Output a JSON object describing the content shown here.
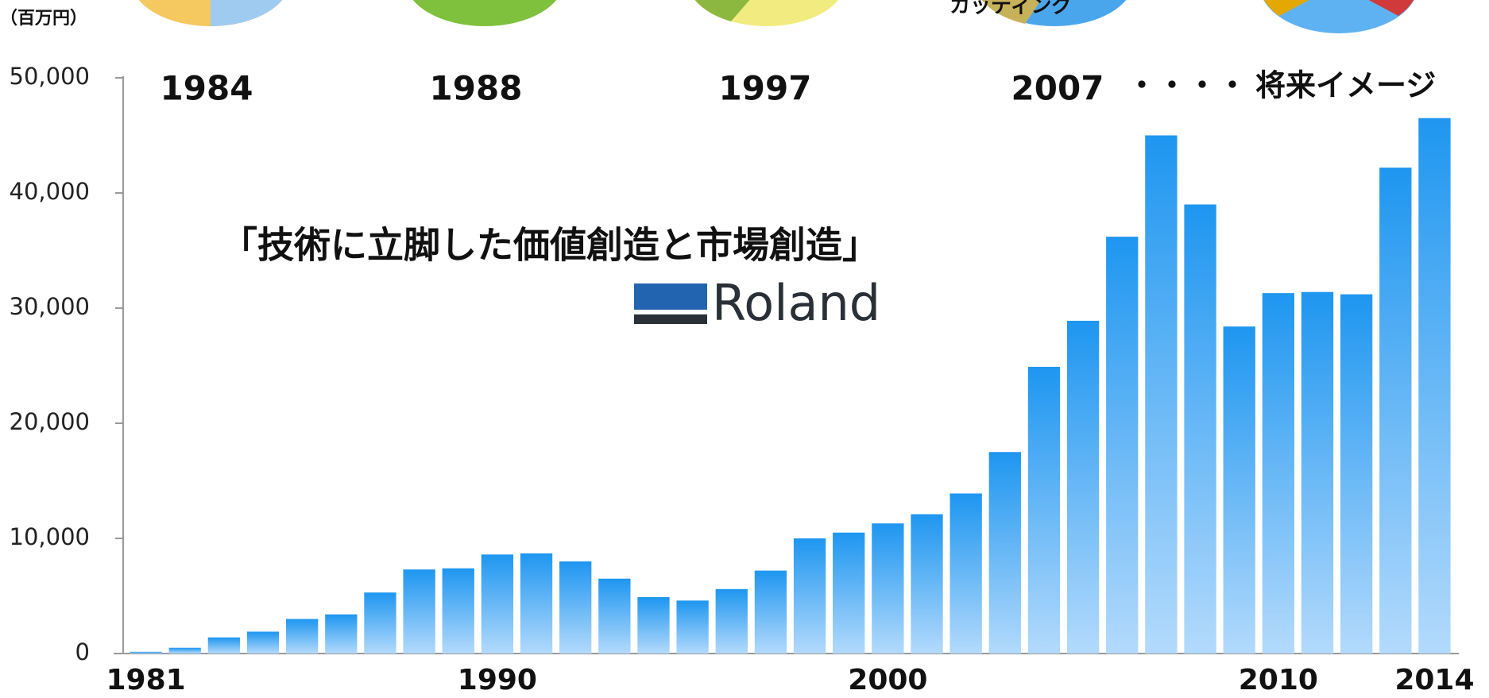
{
  "chart_data": {
    "type": "bar",
    "unit_label": "（百万円）",
    "annotations": [
      "1984",
      "1988",
      "1997",
      "2007",
      "・・・・",
      "将来イメージ",
      "「技術に立脚した価値創造と市場創造」",
      "Roland",
      "カッティング"
    ],
    "categories": [
      "1981",
      null,
      null,
      null,
      null,
      null,
      null,
      null,
      null,
      "1990",
      null,
      null,
      null,
      null,
      null,
      null,
      null,
      null,
      null,
      "2000",
      null,
      null,
      null,
      null,
      null,
      null,
      null,
      null,
      null,
      "2010",
      null,
      null,
      null,
      "2014"
    ],
    "values": [
      150,
      500,
      1400,
      1900,
      3000,
      3400,
      5300,
      7300,
      7400,
      8600,
      8700,
      8000,
      6500,
      4900,
      4600,
      5600,
      7200,
      10000,
      10500,
      11300,
      12100,
      13900,
      17500,
      24900,
      28900,
      36200,
      45000,
      39000,
      28400,
      31300,
      31400,
      31200,
      42200,
      46500
    ],
    "color": "#1e96f0",
    "ylim": [
      0,
      50000
    ],
    "yticks": [
      0,
      {
        "value": 10000,
        "label": "10,000"
      },
      {
        "value": 20000,
        "label": "20,000"
      },
      {
        "value": 30000,
        "label": "30,000"
      },
      {
        "value": 40000,
        "label": "40,000"
      },
      {
        "value": 50000,
        "label": "50,000"
      }
    ]
  }
}
